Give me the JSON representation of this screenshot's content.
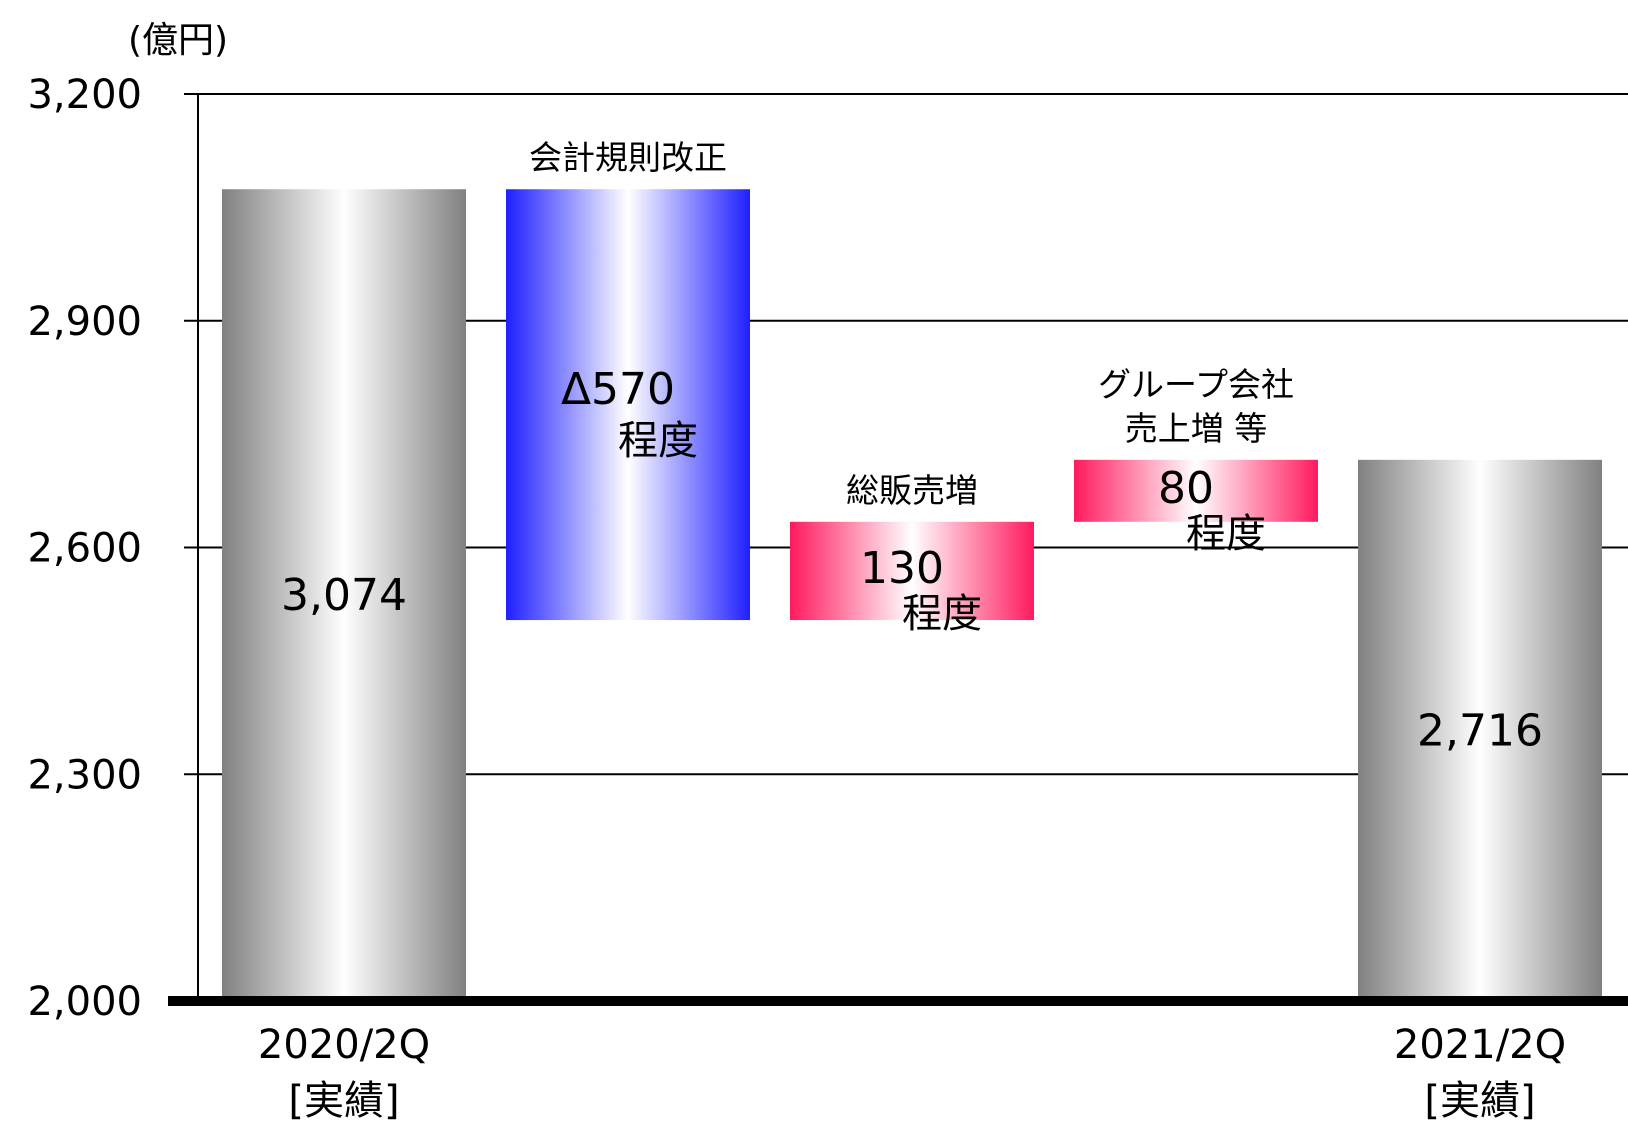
{
  "chart_data": {
    "type": "bar",
    "subtype": "waterfall",
    "y_unit": "(億円)",
    "ylim": [
      2000,
      3200
    ],
    "yticks": [
      "2,000",
      "2,300",
      "2,600",
      "2,900",
      "3,200"
    ],
    "ytick_values": [
      2000,
      2300,
      2600,
      2900,
      3200
    ],
    "grid": true,
    "bars": [
      {
        "kind": "total",
        "category": [
          "2020/2Q",
          "[実績]"
        ],
        "start": 2000,
        "end": 3074,
        "label": "3,074",
        "colors": [
          "#808080",
          "#ffffff",
          "#808080"
        ]
      },
      {
        "kind": "decrease",
        "caption": [
          "会計規則改正"
        ],
        "start": 3074,
        "end": 2504,
        "label": "Δ570",
        "sublabel": "程度",
        "colors": [
          "#1f1fff",
          "#ffffff",
          "#1f1fff"
        ]
      },
      {
        "kind": "increase",
        "caption": [
          "総販売増"
        ],
        "start": 2504,
        "end": 2634,
        "label": "130",
        "sublabel": "程度",
        "colors": [
          "#ff1a5e",
          "#ffffff",
          "#ff1a5e"
        ]
      },
      {
        "kind": "increase",
        "caption": [
          "グループ会社",
          "売上増 等"
        ],
        "start": 2634,
        "end": 2716,
        "label": "80",
        "sublabel": "程度",
        "colors": [
          "#ff1a5e",
          "#ffffff",
          "#ff1a5e"
        ]
      },
      {
        "kind": "total",
        "category": [
          "2021/2Q",
          "[実績]"
        ],
        "start": 2000,
        "end": 2716,
        "label": "2,716",
        "colors": [
          "#808080",
          "#ffffff",
          "#808080"
        ]
      }
    ]
  }
}
